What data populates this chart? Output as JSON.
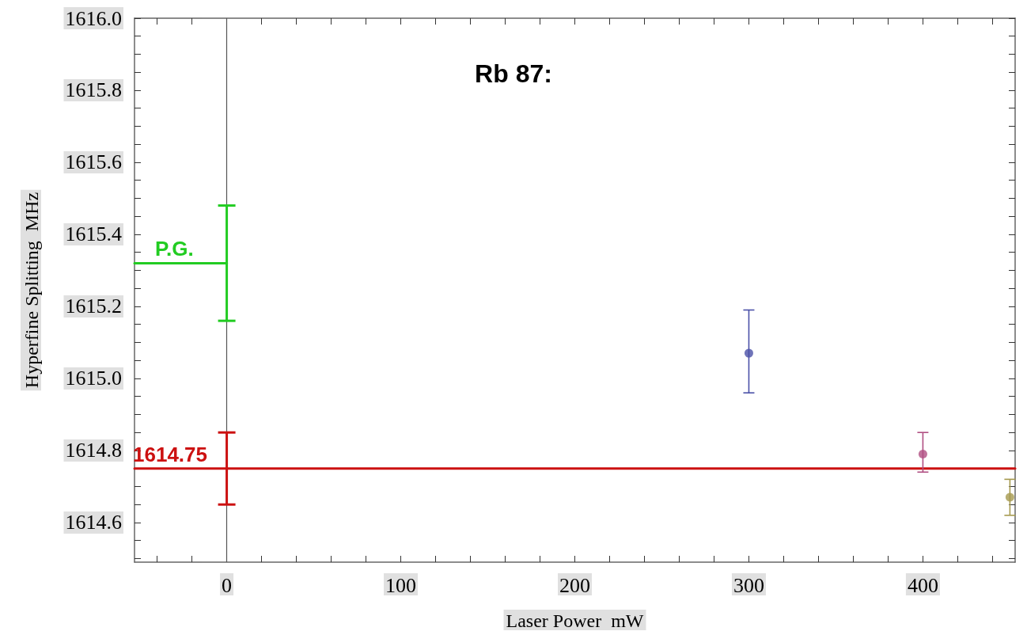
{
  "chart_data": {
    "type": "scatter",
    "title": "Rb 87:",
    "xlabel": "Laser Power  mW",
    "ylabel": "Hyperfine Splitting  MHz",
    "xlim": [
      -53,
      453
    ],
    "ylim": [
      1614.49,
      1616.0
    ],
    "xticks": [
      {
        "value": -40,
        "label": null
      },
      {
        "value": -20,
        "label": null
      },
      0,
      {
        "value": 20,
        "label": null
      },
      {
        "value": 40,
        "label": null
      },
      {
        "value": 60,
        "label": null
      },
      {
        "value": 80,
        "label": null
      },
      100,
      {
        "value": 120,
        "label": null
      },
      {
        "value": 140,
        "label": null
      },
      {
        "value": 160,
        "label": null
      },
      {
        "value": 180,
        "label": null
      },
      200,
      {
        "value": 220,
        "label": null
      },
      {
        "value": 240,
        "label": null
      },
      {
        "value": 260,
        "label": null
      },
      {
        "value": 280,
        "label": null
      },
      300,
      {
        "value": 320,
        "label": null
      },
      {
        "value": 340,
        "label": null
      },
      {
        "value": 360,
        "label": null
      },
      {
        "value": 380,
        "label": null
      },
      400,
      {
        "value": 420,
        "label": null
      },
      {
        "value": 440,
        "label": null
      }
    ],
    "yticks": [
      {
        "value": 1614.5,
        "label": null
      },
      {
        "value": 1614.55,
        "label": null
      },
      {
        "value": 1614.6,
        "label": "1614.6"
      },
      {
        "value": 1614.65,
        "label": null
      },
      {
        "value": 1614.7,
        "label": null
      },
      {
        "value": 1614.75,
        "label": null
      },
      {
        "value": 1614.8,
        "label": "1614.8"
      },
      {
        "value": 1614.85,
        "label": null
      },
      {
        "value": 1614.9,
        "label": null
      },
      {
        "value": 1614.95,
        "label": null
      },
      {
        "value": 1615.0,
        "label": "1615.0"
      },
      {
        "value": 1615.05,
        "label": null
      },
      {
        "value": 1615.1,
        "label": null
      },
      {
        "value": 1615.15,
        "label": null
      },
      {
        "value": 1615.2,
        "label": "1615.2"
      },
      {
        "value": 1615.25,
        "label": null
      },
      {
        "value": 1615.3,
        "label": null
      },
      {
        "value": 1615.35,
        "label": null
      },
      {
        "value": 1615.4,
        "label": "1615.4"
      },
      {
        "value": 1615.45,
        "label": null
      },
      {
        "value": 1615.5,
        "label": null
      },
      {
        "value": 1615.55,
        "label": null
      },
      {
        "value": 1615.6,
        "label": "1615.6"
      },
      {
        "value": 1615.65,
        "label": null
      },
      {
        "value": 1615.7,
        "label": null
      },
      {
        "value": 1615.75,
        "label": null
      },
      {
        "value": 1615.8,
        "label": "1615.8"
      },
      {
        "value": 1615.85,
        "label": null
      },
      {
        "value": 1615.9,
        "label": null
      },
      {
        "value": 1615.95,
        "label": null
      },
      {
        "value": 1616.0,
        "label": "1616.0"
      }
    ],
    "grid": false,
    "marker": "circle",
    "legend": false,
    "ref_lines": [
      {
        "axis": "x",
        "value": 0,
        "color": "#555555"
      }
    ],
    "series": [
      {
        "type": "line",
        "name": "P.G.",
        "marker": "none",
        "color": "#22cc22",
        "x": [
          -53,
          0
        ],
        "values": [
          1615.32,
          1615.32
        ],
        "errors": [
          null,
          [
            1615.16,
            1615.48
          ]
        ]
      },
      {
        "type": "line",
        "marker": "none",
        "color": "#cc1111",
        "x": [
          -53,
          0,
          453
        ],
        "values": [
          1614.75,
          1614.75,
          1614.75
        ],
        "errors": [
          null,
          [
            1614.65,
            1614.85
          ],
          null
        ],
        "value_labels": [
          "1614.75",
          null,
          null
        ]
      },
      {
        "color": "#4b51a8",
        "x": [
          300
        ],
        "values": [
          1615.07
        ],
        "errors": [
          [
            1614.96,
            1615.19
          ]
        ]
      },
      {
        "color": "#b04f82",
        "x": [
          400
        ],
        "values": [
          1614.79
        ],
        "errors": [
          [
            1614.74,
            1614.85
          ]
        ]
      },
      {
        "color": "#a69a4f",
        "x": [
          450
        ],
        "values": [
          1614.67
        ],
        "errors": [
          [
            1614.62,
            1614.72
          ]
        ]
      }
    ]
  }
}
